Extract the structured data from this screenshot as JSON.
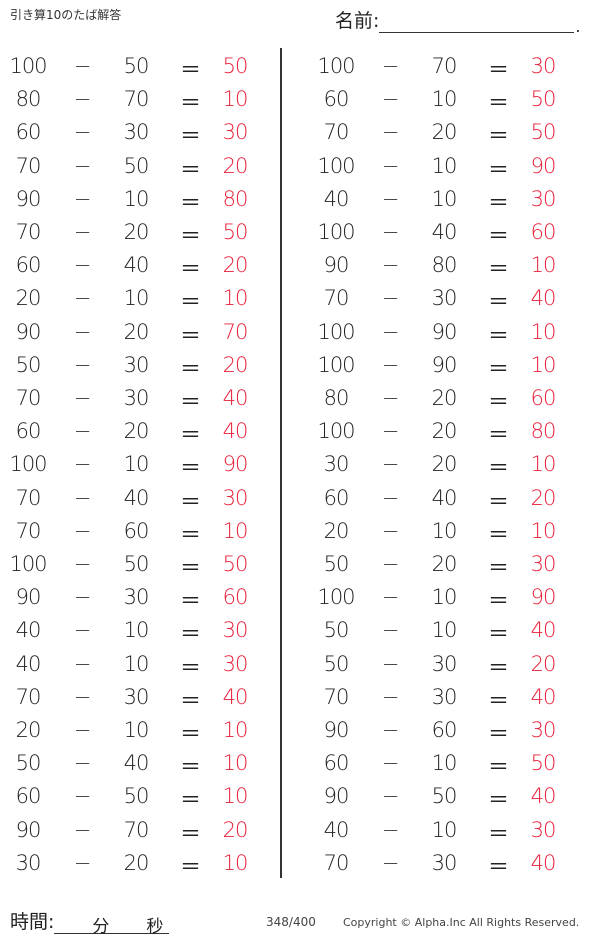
{
  "header": {
    "title": "引き算10のたば解答",
    "name_label": "名前:"
  },
  "operators": {
    "minus": "−",
    "equals": "＝"
  },
  "colors": {
    "answer": "#e8203a",
    "text": "#222222"
  },
  "left": [
    [
      100,
      50,
      50
    ],
    [
      80,
      70,
      10
    ],
    [
      60,
      30,
      30
    ],
    [
      70,
      50,
      20
    ],
    [
      90,
      10,
      80
    ],
    [
      70,
      20,
      50
    ],
    [
      60,
      40,
      20
    ],
    [
      20,
      10,
      10
    ],
    [
      90,
      20,
      70
    ],
    [
      50,
      30,
      20
    ],
    [
      70,
      30,
      40
    ],
    [
      60,
      20,
      40
    ],
    [
      100,
      10,
      90
    ],
    [
      70,
      40,
      30
    ],
    [
      70,
      60,
      10
    ],
    [
      100,
      50,
      50
    ],
    [
      90,
      30,
      60
    ],
    [
      40,
      10,
      30
    ],
    [
      40,
      10,
      30
    ],
    [
      70,
      30,
      40
    ],
    [
      20,
      10,
      10
    ],
    [
      50,
      40,
      10
    ],
    [
      60,
      50,
      10
    ],
    [
      90,
      70,
      20
    ],
    [
      30,
      20,
      10
    ]
  ],
  "right": [
    [
      100,
      70,
      30
    ],
    [
      60,
      10,
      50
    ],
    [
      70,
      20,
      50
    ],
    [
      100,
      10,
      90
    ],
    [
      40,
      10,
      30
    ],
    [
      100,
      40,
      60
    ],
    [
      90,
      80,
      10
    ],
    [
      70,
      30,
      40
    ],
    [
      100,
      90,
      10
    ],
    [
      100,
      90,
      10
    ],
    [
      80,
      20,
      60
    ],
    [
      100,
      20,
      80
    ],
    [
      30,
      20,
      10
    ],
    [
      60,
      40,
      20
    ],
    [
      20,
      10,
      10
    ],
    [
      50,
      20,
      30
    ],
    [
      100,
      10,
      90
    ],
    [
      50,
      10,
      40
    ],
    [
      50,
      30,
      20
    ],
    [
      70,
      30,
      40
    ],
    [
      90,
      60,
      30
    ],
    [
      60,
      10,
      50
    ],
    [
      90,
      50,
      40
    ],
    [
      40,
      10,
      30
    ],
    [
      70,
      30,
      40
    ]
  ],
  "footer": {
    "time_label": "時間:",
    "minutes": "分",
    "seconds": "秒",
    "page": "348/400",
    "copyright": "Copyright ©  Alpha.Inc All Rights Reserved."
  }
}
